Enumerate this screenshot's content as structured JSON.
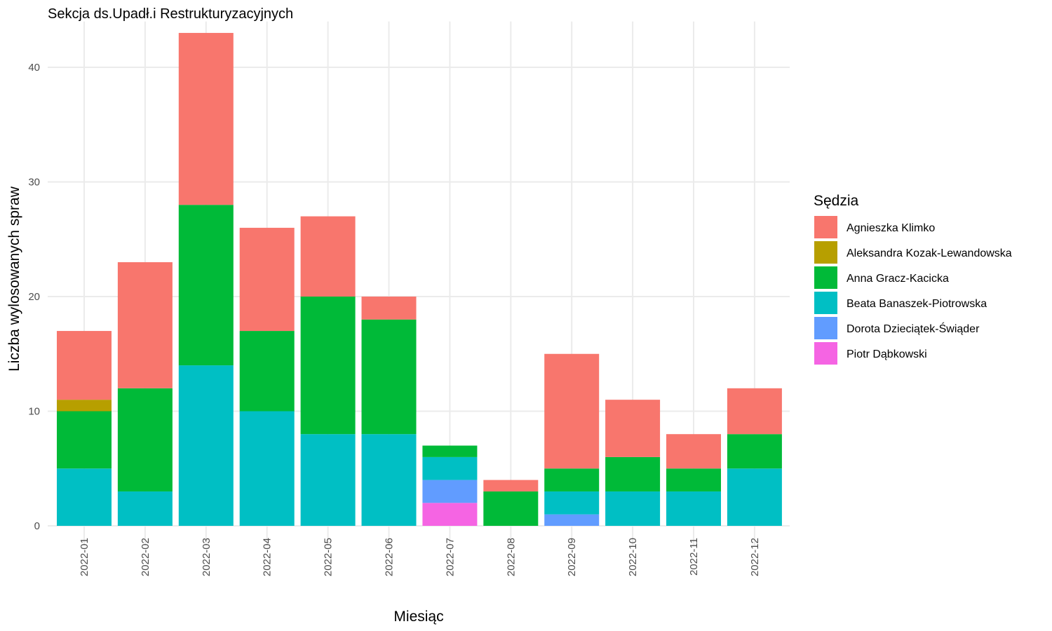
{
  "chart_data": {
    "type": "bar",
    "stacked": true,
    "title": "Sekcja ds.Upadł.i Restrukturyzacyjnych",
    "xlabel": "Miesiąc",
    "ylabel": "Liczba wylosowanych spraw",
    "ylim": [
      0,
      44
    ],
    "yticks": [
      0,
      10,
      20,
      30,
      40
    ],
    "grid": true,
    "legend": {
      "title": "Sędzia",
      "position": "right"
    },
    "categories": [
      "2022-01",
      "2022-02",
      "2022-03",
      "2022-04",
      "2022-05",
      "2022-06",
      "2022-07",
      "2022-08",
      "2022-09",
      "2022-10",
      "2022-11",
      "2022-12"
    ],
    "series": [
      {
        "name": "Agnieszka Klimko",
        "color": "#F8766D",
        "values": [
          6,
          11,
          15,
          9,
          7,
          2,
          0,
          1,
          10,
          5,
          3,
          4
        ]
      },
      {
        "name": "Aleksandra Kozak-Lewandowska",
        "color": "#B79F00",
        "values": [
          1,
          0,
          0,
          0,
          0,
          0,
          0,
          0,
          0,
          0,
          0,
          0
        ]
      },
      {
        "name": "Anna Gracz-Kacicka",
        "color": "#00BA38",
        "values": [
          5,
          9,
          14,
          7,
          12,
          10,
          1,
          3,
          2,
          3,
          2,
          3
        ]
      },
      {
        "name": "Beata Banaszek-Piotrowska",
        "color": "#00BFC4",
        "values": [
          5,
          3,
          14,
          10,
          8,
          8,
          2,
          0,
          2,
          3,
          3,
          5
        ]
      },
      {
        "name": "Dorota Dzieciątek-Świąder",
        "color": "#619CFF",
        "values": [
          0,
          0,
          0,
          0,
          0,
          0,
          2,
          0,
          1,
          0,
          0,
          0
        ]
      },
      {
        "name": "Piotr Dąbkowski",
        "color": "#F564E3",
        "values": [
          0,
          0,
          0,
          0,
          0,
          0,
          2,
          0,
          0,
          0,
          0,
          0
        ]
      }
    ]
  }
}
